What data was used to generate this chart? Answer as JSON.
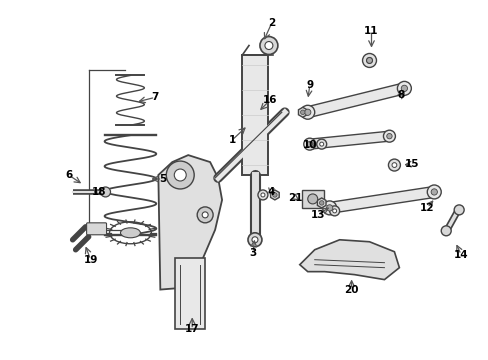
{
  "bg_color": "#ffffff",
  "figsize": [
    4.89,
    3.6
  ],
  "dpi": 100,
  "lc": "#444444",
  "tc": "#000000",
  "fs": 7.5,
  "ac": "#555555"
}
